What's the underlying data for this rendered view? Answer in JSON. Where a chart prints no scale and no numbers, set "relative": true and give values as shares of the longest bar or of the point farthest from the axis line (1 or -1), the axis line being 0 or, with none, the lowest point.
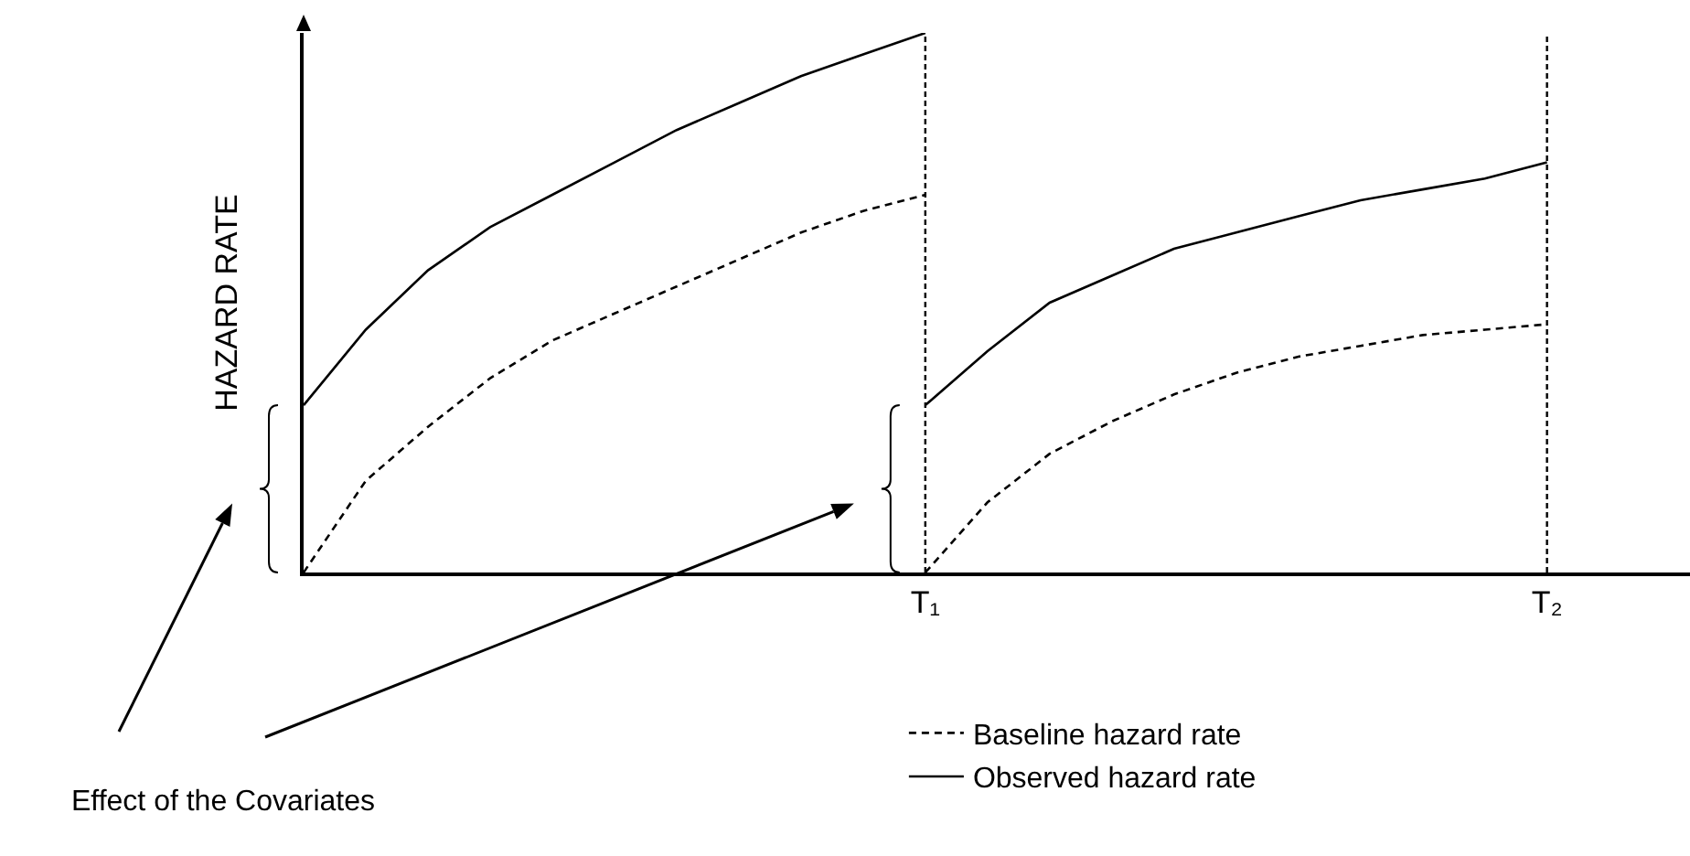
{
  "chart_data": {
    "type": "line",
    "relative": true,
    "ylabel": "HAZARD RATE",
    "tick_labels": "x",
    "legend": "bottom",
    "categories": [
      null,
      null,
      null,
      null,
      null,
      null,
      null,
      null,
      null,
      null,
      "T₁",
      null,
      null,
      null,
      null,
      null,
      null,
      null,
      null,
      null,
      "T₂",
      null,
      null
    ],
    "series": [
      {
        "name": "Baseline hazard rate",
        "color": "#000000",
        "line_style": "dashed",
        "values": [
          0,
          0.17,
          0.27,
          0.36,
          0.43,
          0.48,
          0.53,
          0.58,
          0.63,
          0.67,
          0.7,
          null,
          null,
          null,
          null,
          null,
          null,
          null,
          null,
          null,
          null,
          null,
          null
        ]
      },
      {
        "name": "Observed hazard rate",
        "color": "#000000",
        "line_style": "solid",
        "values": [
          0.31,
          0.45,
          0.56,
          0.64,
          0.7,
          0.76,
          0.82,
          0.87,
          0.92,
          0.96,
          1,
          null,
          null,
          null,
          null,
          null,
          null,
          null,
          null,
          null,
          null,
          null,
          null
        ]
      },
      {
        "color": "#000000",
        "line_style": "dashed",
        "values": [
          null,
          null,
          null,
          null,
          null,
          null,
          null,
          null,
          null,
          null,
          0,
          0.13,
          0.22,
          0.28,
          0.33,
          0.37,
          0.4,
          0.42,
          0.44,
          0.45,
          0.46,
          null,
          null
        ]
      },
      {
        "color": "#000000",
        "line_style": "solid",
        "values": [
          null,
          null,
          null,
          null,
          null,
          null,
          null,
          null,
          null,
          null,
          0.31,
          0.41,
          0.5,
          0.55,
          0.6,
          0.63,
          0.66,
          0.69,
          0.71,
          0.73,
          0.76,
          null,
          null
        ]
      }
    ],
    "ref_lines": [
      {
        "axis": "x",
        "value": "T₁",
        "color": "#000000",
        "line_style": "dotted"
      },
      {
        "axis": "x",
        "value": "T₂",
        "color": "#000000",
        "line_style": "dotted"
      }
    ],
    "annotations": [
      "Effect of the Covariates"
    ]
  }
}
